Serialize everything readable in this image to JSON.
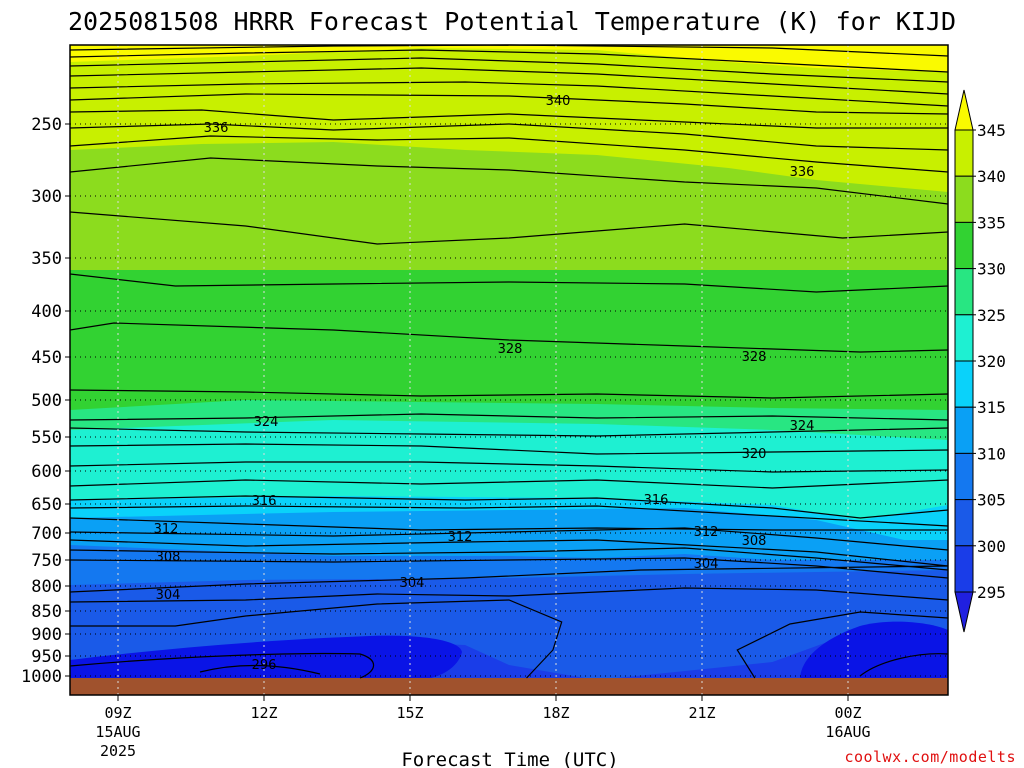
{
  "chart_data": {
    "type": "contour",
    "title": "2025081508 HRRR Forecast Potential Temperature (K) for KIJD",
    "xlabel": "Forecast Time (UTC)",
    "ylabel": "",
    "y_axis": {
      "scale": "pressure (hPa)",
      "ticks": [
        "250",
        "300",
        "350",
        "400",
        "450",
        "500",
        "550",
        "600",
        "650",
        "700",
        "750",
        "800",
        "850",
        "900",
        "950",
        "1000"
      ]
    },
    "x_axis": {
      "ticks": [
        {
          "label": "09Z",
          "sub": [
            "15AUG",
            "2025"
          ]
        },
        {
          "label": "12Z",
          "sub": []
        },
        {
          "label": "15Z",
          "sub": []
        },
        {
          "label": "18Z",
          "sub": []
        },
        {
          "label": "21Z",
          "sub": []
        },
        {
          "label": "00Z",
          "sub": [
            "16AUG"
          ]
        }
      ]
    },
    "colorbar": {
      "labels": [
        "295",
        "300",
        "305",
        "310",
        "315",
        "320",
        "325",
        "330",
        "335",
        "340",
        "345"
      ],
      "fills": [
        "#2020e0",
        "#1a3de8",
        "#1a5ae8",
        "#1478f0",
        "#0aa0f5",
        "#0ad2fa",
        "#1ef0d2",
        "#28e682",
        "#32d232",
        "#8cdc1e",
        "#c8f000",
        "#fafa00"
      ]
    },
    "isotherm_labels": [
      {
        "text": "340",
        "level": 340
      },
      {
        "text": "336",
        "level": 336
      },
      {
        "text": "336",
        "level": 336
      },
      {
        "text": "328",
        "level": 328
      },
      {
        "text": "328",
        "level": 328
      },
      {
        "text": "324",
        "level": 324
      },
      {
        "text": "324",
        "level": 324
      },
      {
        "text": "320",
        "level": 320
      },
      {
        "text": "316",
        "level": 316
      },
      {
        "text": "316",
        "level": 316
      },
      {
        "text": "312",
        "level": 312
      },
      {
        "text": "312",
        "level": 312
      },
      {
        "text": "312",
        "level": 312
      },
      {
        "text": "308",
        "level": 308
      },
      {
        "text": "308",
        "level": 308
      },
      {
        "text": "304",
        "level": 304
      },
      {
        "text": "304",
        "level": 304
      },
      {
        "text": "304",
        "level": 304
      },
      {
        "text": "296",
        "level": 296
      }
    ],
    "ground_color": "#a0522d",
    "grid": true
  },
  "credit": "coolwx.com/modelts"
}
